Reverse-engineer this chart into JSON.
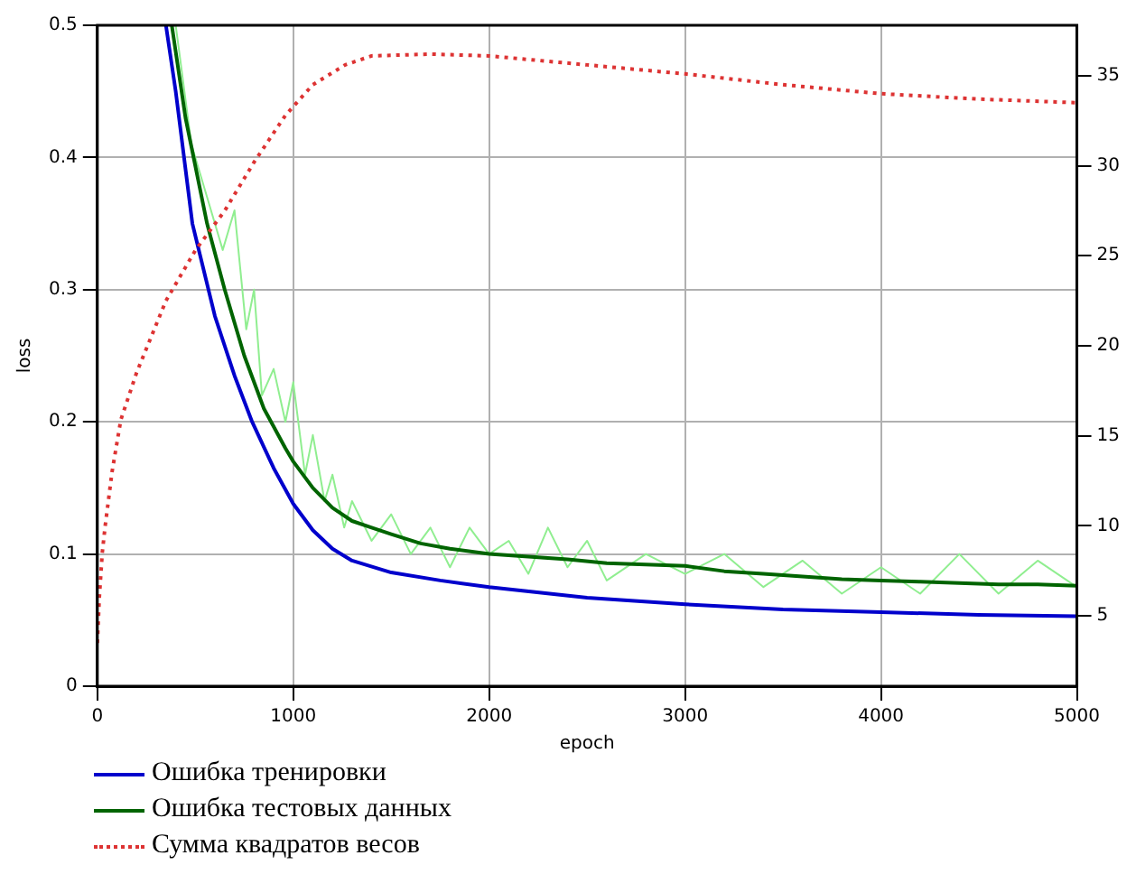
{
  "chart_data": {
    "type": "line",
    "xlabel": "epoch",
    "ylabel": "loss",
    "xlim": [
      0,
      5000
    ],
    "xticks": [
      0,
      1000,
      2000,
      3000,
      4000,
      5000
    ],
    "ylim": [
      0,
      0.5
    ],
    "yticks": [
      0.0,
      0.1,
      0.2,
      0.3,
      0.4,
      0.5
    ],
    "y2lim": [
      1.1,
      37.8
    ],
    "y2ticks": [
      5,
      10,
      15,
      20,
      25,
      30,
      35
    ],
    "grid": true,
    "legend": "bottom left",
    "marker": "none",
    "series": [
      {
        "color": "#90ee90",
        "x": [
          400,
          480,
          560,
          640,
          700,
          760,
          800,
          840,
          900,
          960,
          1000,
          1060,
          1100,
          1160,
          1200,
          1260,
          1300,
          1400,
          1500,
          1600,
          1700,
          1800,
          1900,
          2000,
          2100,
          2200,
          2300,
          2400,
          2500,
          2600,
          2800,
          3000,
          3200,
          3400,
          3600,
          3800,
          4000,
          4200,
          4400,
          4600,
          4800,
          5000
        ],
        "values": [
          0.5,
          0.41,
          0.37,
          0.33,
          0.36,
          0.27,
          0.3,
          0.22,
          0.24,
          0.2,
          0.23,
          0.16,
          0.19,
          0.14,
          0.16,
          0.12,
          0.14,
          0.11,
          0.13,
          0.1,
          0.12,
          0.09,
          0.12,
          0.1,
          0.11,
          0.085,
          0.12,
          0.09,
          0.11,
          0.08,
          0.1,
          0.085,
          0.1,
          0.075,
          0.095,
          0.07,
          0.09,
          0.07,
          0.1,
          0.07,
          0.095,
          0.075
        ]
      },
      {
        "name": "Ошибка тренировки",
        "color": "#0000cc",
        "x": [
          350,
          400,
          485,
          600,
          700,
          790,
          900,
          1000,
          1100,
          1200,
          1300,
          1500,
          1750,
          2000,
          2500,
          3000,
          3500,
          4000,
          4500,
          5000
        ],
        "values": [
          0.5,
          0.45,
          0.35,
          0.28,
          0.235,
          0.2,
          0.165,
          0.138,
          0.118,
          0.104,
          0.095,
          0.086,
          0.08,
          0.075,
          0.067,
          0.062,
          0.058,
          0.056,
          0.054,
          0.053
        ]
      },
      {
        "name": "Ошибка тестовых данных",
        "color": "#006400",
        "x": [
          380,
          450,
          560,
          650,
          750,
          850,
          960,
          1000,
          1100,
          1200,
          1300,
          1400,
          1500,
          1650,
          1800,
          2000,
          2200,
          2400,
          2600,
          2800,
          3000,
          3200,
          3400,
          3600,
          3800,
          4000,
          4200,
          4400,
          4600,
          4800,
          5000
        ],
        "values": [
          0.5,
          0.43,
          0.35,
          0.3,
          0.25,
          0.21,
          0.18,
          0.17,
          0.15,
          0.135,
          0.125,
          0.12,
          0.115,
          0.108,
          0.104,
          0.1,
          0.098,
          0.096,
          0.093,
          0.092,
          0.091,
          0.087,
          0.085,
          0.083,
          0.081,
          0.08,
          0.079,
          0.078,
          0.077,
          0.077,
          0.076
        ]
      },
      {
        "name": "Сумма квадратов весов",
        "color": "#dd3333",
        "axis": "y2",
        "line_style": "dotted",
        "x": [
          0,
          10,
          25,
          40,
          75,
          120,
          200,
          350,
          500,
          650,
          800,
          960,
          1100,
          1265,
          1400,
          1700,
          2000,
          2500,
          3000,
          3500,
          4000,
          4500,
          5000
        ],
        "values": [
          3.5,
          6,
          8.5,
          10,
          13,
          15.9,
          18.5,
          22.5,
          25.3,
          27.5,
          30.2,
          32.8,
          34.5,
          35.6,
          36.1,
          36.2,
          36.1,
          35.6,
          35.1,
          34.5,
          34.0,
          33.7,
          33.5
        ]
      }
    ]
  }
}
